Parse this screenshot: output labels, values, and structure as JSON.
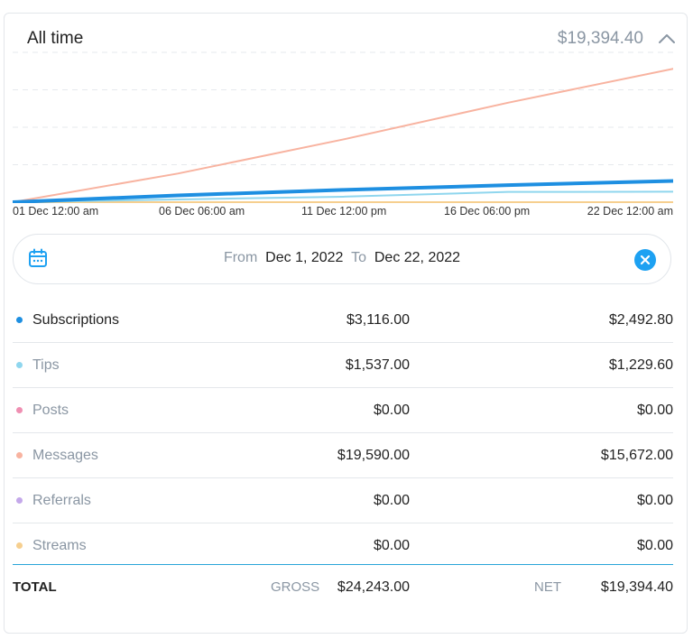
{
  "header": {
    "title": "All time",
    "total": "$19,394.40",
    "collapse_icon": "chevron-up-icon"
  },
  "date_range": {
    "from_label": "From",
    "from_value": "Dec 1, 2022",
    "to_label": "To",
    "to_value": "Dec 22, 2022",
    "calendar_icon": "calendar-icon",
    "clear_icon": "clear-circle-icon"
  },
  "colors": {
    "subscriptions": "#1e8fe1",
    "tips": "#8fd6ee",
    "posts": "#ef8fb2",
    "messages": "#f8b3a0",
    "referrals": "#c4a8ea",
    "streams": "#f6cf8f",
    "accent": "#1da1f2"
  },
  "chart_data": {
    "type": "line",
    "x": [
      "01 Dec 12:00 am",
      "06 Dec 06:00 am",
      "11 Dec 12:00 pm",
      "16 Dec 06:00 pm",
      "22 Dec 12:00 am"
    ],
    "series": [
      {
        "name": "Messages",
        "values": [
          0,
          4200,
          9200,
          14600,
          19590
        ]
      },
      {
        "name": "Subscriptions",
        "values": [
          0,
          1000,
          1800,
          2500,
          3116
        ]
      },
      {
        "name": "Tips",
        "values": [
          0,
          400,
          800,
          1500,
          1537
        ]
      },
      {
        "name": "Posts",
        "values": [
          0,
          0,
          0,
          0,
          0
        ]
      },
      {
        "name": "Referrals",
        "values": [
          0,
          0,
          0,
          0,
          0
        ]
      },
      {
        "name": "Streams",
        "values": [
          0,
          0,
          0,
          0,
          0
        ]
      }
    ],
    "ylim": [
      0,
      22000
    ],
    "grid": true
  },
  "rows": [
    {
      "key": "subscriptions",
      "label": "Subscriptions",
      "gross": "$3,116.00",
      "net": "$2,492.80",
      "active": true
    },
    {
      "key": "tips",
      "label": "Tips",
      "gross": "$1,537.00",
      "net": "$1,229.60",
      "active": false
    },
    {
      "key": "posts",
      "label": "Posts",
      "gross": "$0.00",
      "net": "$0.00",
      "active": false
    },
    {
      "key": "messages",
      "label": "Messages",
      "gross": "$19,590.00",
      "net": "$15,672.00",
      "active": false
    },
    {
      "key": "referrals",
      "label": "Referrals",
      "gross": "$0.00",
      "net": "$0.00",
      "active": false
    },
    {
      "key": "streams",
      "label": "Streams",
      "gross": "$0.00",
      "net": "$0.00",
      "active": false
    }
  ],
  "totals": {
    "label": "TOTAL",
    "gross_label": "GROSS",
    "gross": "$24,243.00",
    "net_label": "NET",
    "net": "$19,394.40"
  }
}
